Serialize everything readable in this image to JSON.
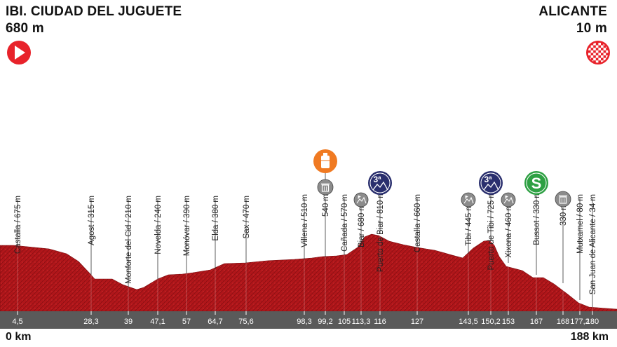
{
  "start": {
    "name": "IBI. CIUDAD DEL JUGUETE",
    "elevation": "680 m",
    "km": "0 km",
    "icon": "play-icon",
    "color": "#e8222a"
  },
  "finish": {
    "name": "ALICANTE",
    "elevation": "10 m",
    "km": "188 km",
    "icon": "checkered-flag-icon"
  },
  "colors": {
    "profile_fill": "#b0161a",
    "profile_dark": "#6b0a0c",
    "km_bar": "#5a5a5a",
    "climb_badge": "#2a2f6e",
    "sprint_badge": "#2ea043",
    "feed_badge": "#f07a22",
    "waste_badge": "#8c8c8c"
  },
  "points": [
    {
      "name": "Castalla / 675 m",
      "km": "4,5"
    },
    {
      "name": "Agost / 315 m",
      "km": "28,3"
    },
    {
      "name": "Monforte del Cid / 210 m",
      "km": "39"
    },
    {
      "name": "Novelda / 240 m",
      "km": "47,1"
    },
    {
      "name": "Monóvar / 390 m",
      "km": "57"
    },
    {
      "name": "Elda / 380 m",
      "km": "64,7"
    },
    {
      "name": "Sax / 470 m",
      "km": "75,6"
    },
    {
      "name": "Villena / 510 m",
      "km": "98,3"
    },
    {
      "name": "540 m",
      "km": "99,2",
      "icon": "waste-zone-icon"
    },
    {
      "name": "Cañada / 570 m",
      "km": "105"
    },
    {
      "name": "Biar / 680 m",
      "km": "113,3",
      "icon": "climb-start-icon"
    },
    {
      "name": "Puerto de Biar / 810 m",
      "km": "116",
      "icon": "category-3-climb-icon",
      "badge": "3ª"
    },
    {
      "name": "Castalla / 660 m",
      "km": "127"
    },
    {
      "name": "Tibi / 445 m",
      "km": "143,5",
      "icon": "climb-start-icon"
    },
    {
      "name": "Puerto de Tibi / 725 m",
      "km": "150,2",
      "icon": "category-3-climb-icon",
      "badge": "3ª"
    },
    {
      "name": "Xixona / 460 m",
      "km": "153",
      "icon": "climb-start-icon"
    },
    {
      "name": "Bussot / 330 m",
      "km": "167",
      "icon": "sprint-icon",
      "badge": "S"
    },
    {
      "name": "330 m",
      "km": "168",
      "icon": "waste-zone-icon"
    },
    {
      "name": "Mutxamel / 80 m",
      "km": "177,2"
    },
    {
      "name": "San Juan de Alicante / 34 m",
      "km": "180"
    }
  ],
  "feed_zone": {
    "name": "540 m",
    "icon": "feed-bottle-icon"
  }
}
